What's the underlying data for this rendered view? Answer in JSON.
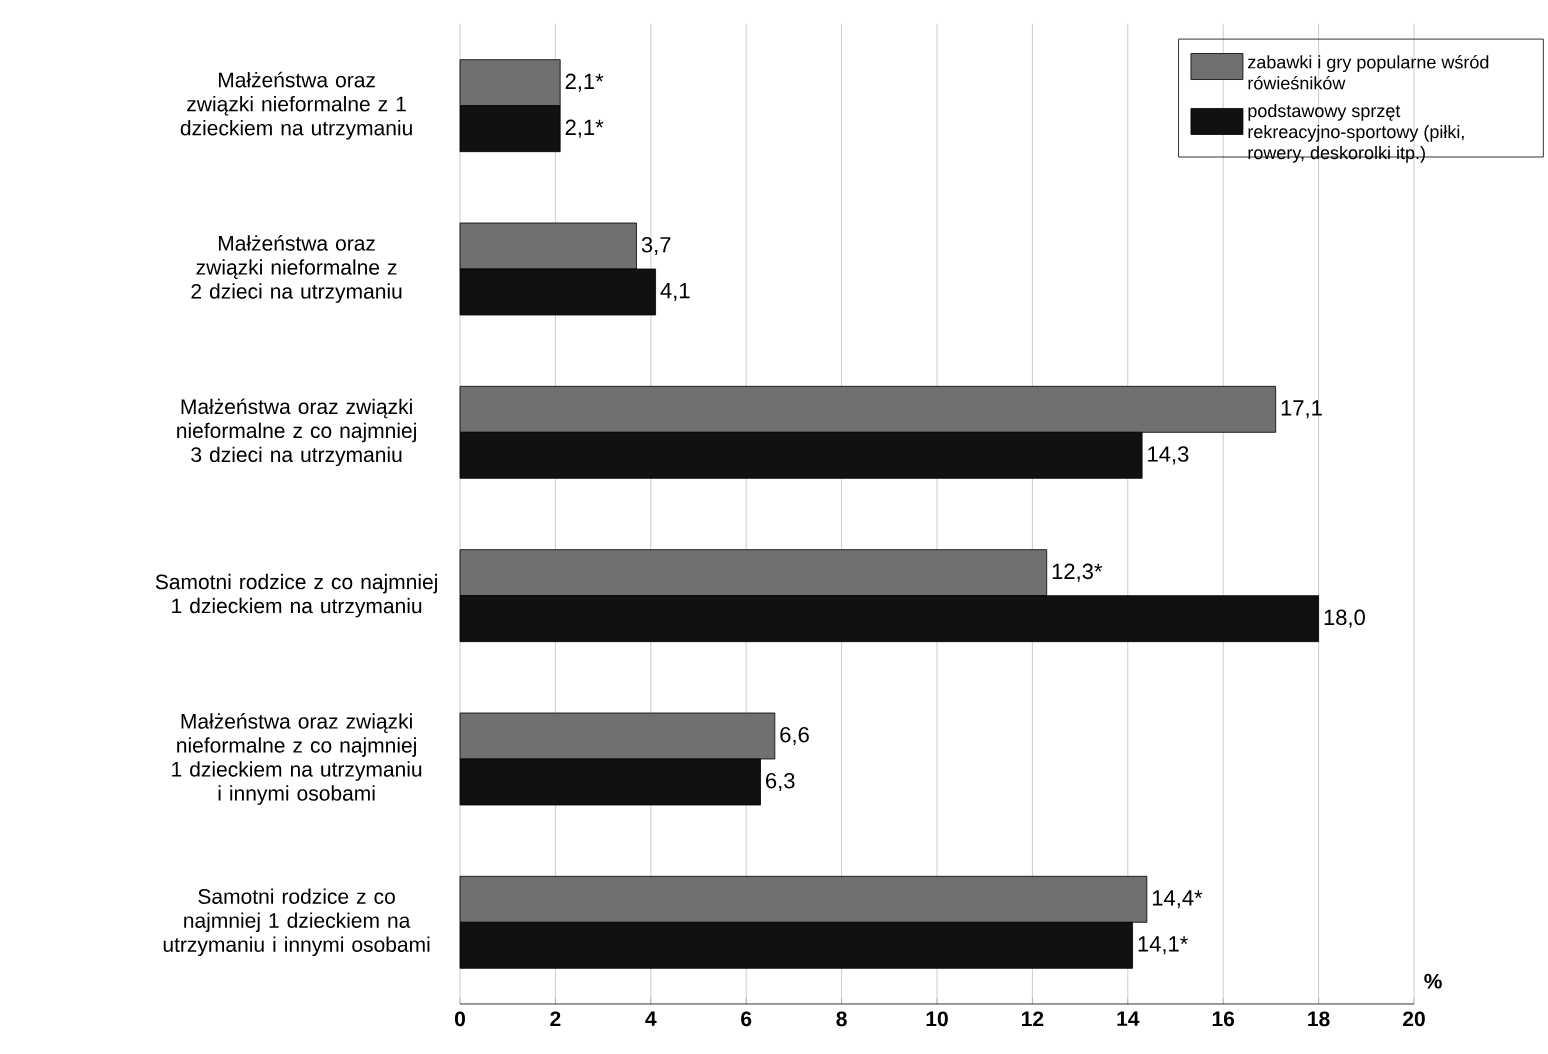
{
  "chart_data": {
    "type": "bar",
    "orientation": "horizontal",
    "xlabel": "%",
    "categories": [
      "Małżeństwa oraz związki nieformalne z 1 dzieckiem na utrzymaniu",
      "Małżeństwa oraz związki nieformalne z 2 dzieci na utrzymaniu",
      "Małżeństwa oraz związki nieformalne z co najmniej 3 dzieci na utrzymaniu",
      "Samotni rodzice z co najmniej 1 dzieckiem na utrzymaniu",
      "Małżeństwa oraz związki nieformalne z co najmniej 1 dzieckiem na utrzymaniu i innymi osobami",
      "Samotni rodzice z co najmniej 1 dzieckiem na utrzymaniu i innymi osobami"
    ],
    "series": [
      {
        "name": "zabawki i gry popularne wśród rówieśników",
        "color": "#707070",
        "values": [
          2.1,
          3.7,
          17.1,
          12.3,
          6.6,
          14.4
        ],
        "value_labels": [
          "2,1*",
          "3,7",
          "17,1",
          "12,3*",
          "6,6",
          "14,4*"
        ]
      },
      {
        "name": "podstawowy sprzęt rekreacyjno-sportowy (piłki, rowery, deskorolki itp.)",
        "color": "#111111",
        "values": [
          2.1,
          4.1,
          14.3,
          18.0,
          6.3,
          14.1
        ],
        "value_labels": [
          "2,1*",
          "4,1",
          "14,3",
          "18,0",
          "6,3",
          "14,1*"
        ]
      }
    ],
    "xlim": [
      0,
      20
    ],
    "xticks": [
      0,
      2,
      4,
      6,
      8,
      10,
      12,
      14,
      16,
      18,
      20
    ],
    "grid": "x",
    "legend": "top right"
  }
}
